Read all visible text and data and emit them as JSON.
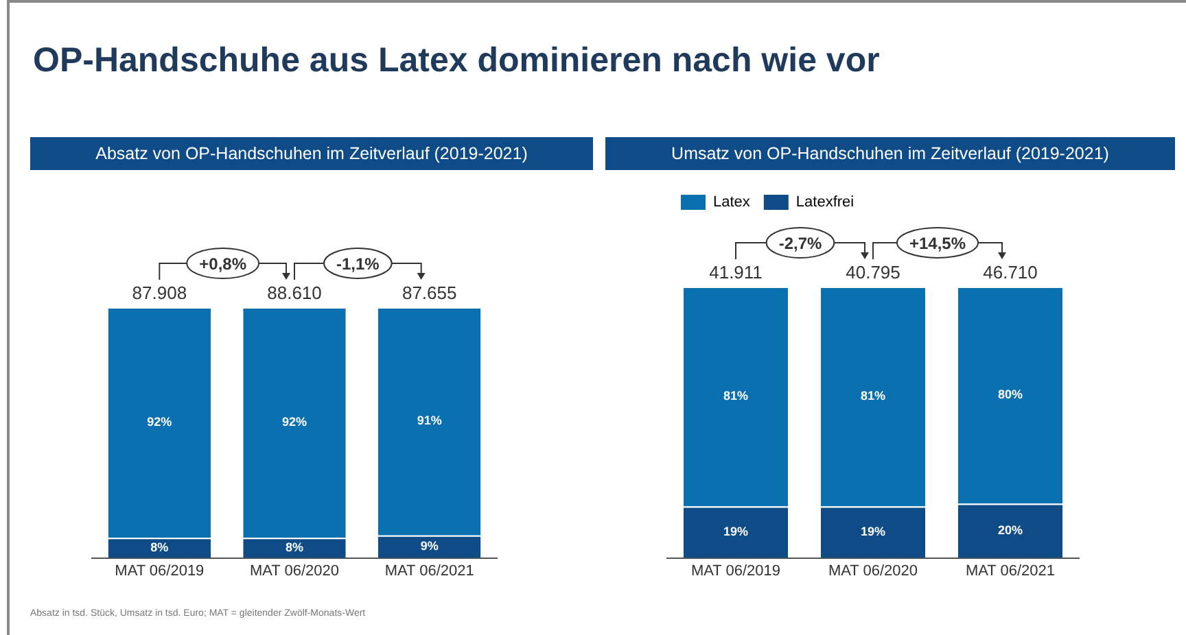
{
  "chart_data": [
    {
      "type": "bar",
      "title": "OP-Handschuhe aus Latex dominieren nach wie vor",
      "subtitle": "Absatz von OP-Handschuhen im Zeitverlauf (2019-2021)",
      "categories": [
        "MAT 06/2019",
        "MAT 06/2020",
        "MAT 06/2021"
      ],
      "stacked": true,
      "legend": false,
      "grid": false,
      "series": [
        {
          "color": "#0e4b87",
          "values": [
            8,
            8,
            9
          ],
          "value_labels": [
            "8%",
            "8%",
            "9%"
          ]
        },
        {
          "color": "#0a70b0",
          "values": [
            92,
            92,
            91
          ],
          "value_labels": [
            "92%",
            "92%",
            "91%"
          ]
        }
      ],
      "annotations": [
        "87.908",
        "88.610",
        "87.655",
        "+0,8%",
        "-1,1%",
        "Absatz in tsd. Stück, Umsatz in tsd. Euro; MAT = gleitender Zwölf-Monats-Wert"
      ]
    },
    {
      "type": "bar",
      "title": "Umsatz von OP-Handschuhen im Zeitverlauf (2019-2021)",
      "categories": [
        "MAT 06/2019",
        "MAT 06/2020",
        "MAT 06/2021"
      ],
      "stacked": true,
      "legend": "top left",
      "grid": false,
      "series": [
        {
          "name": "Latexfrei",
          "color": "#0e4b87",
          "values": [
            19,
            19,
            20
          ],
          "value_labels": [
            "19%",
            "19%",
            "20%"
          ]
        },
        {
          "name": "Latex",
          "color": "#0a70b0",
          "values": [
            81,
            81,
            80
          ],
          "value_labels": [
            "81%",
            "81%",
            "80%"
          ]
        }
      ],
      "annotations": [
        "41.911",
        "40.795",
        "46.710",
        "-2,7%",
        "+14,5%"
      ]
    }
  ]
}
